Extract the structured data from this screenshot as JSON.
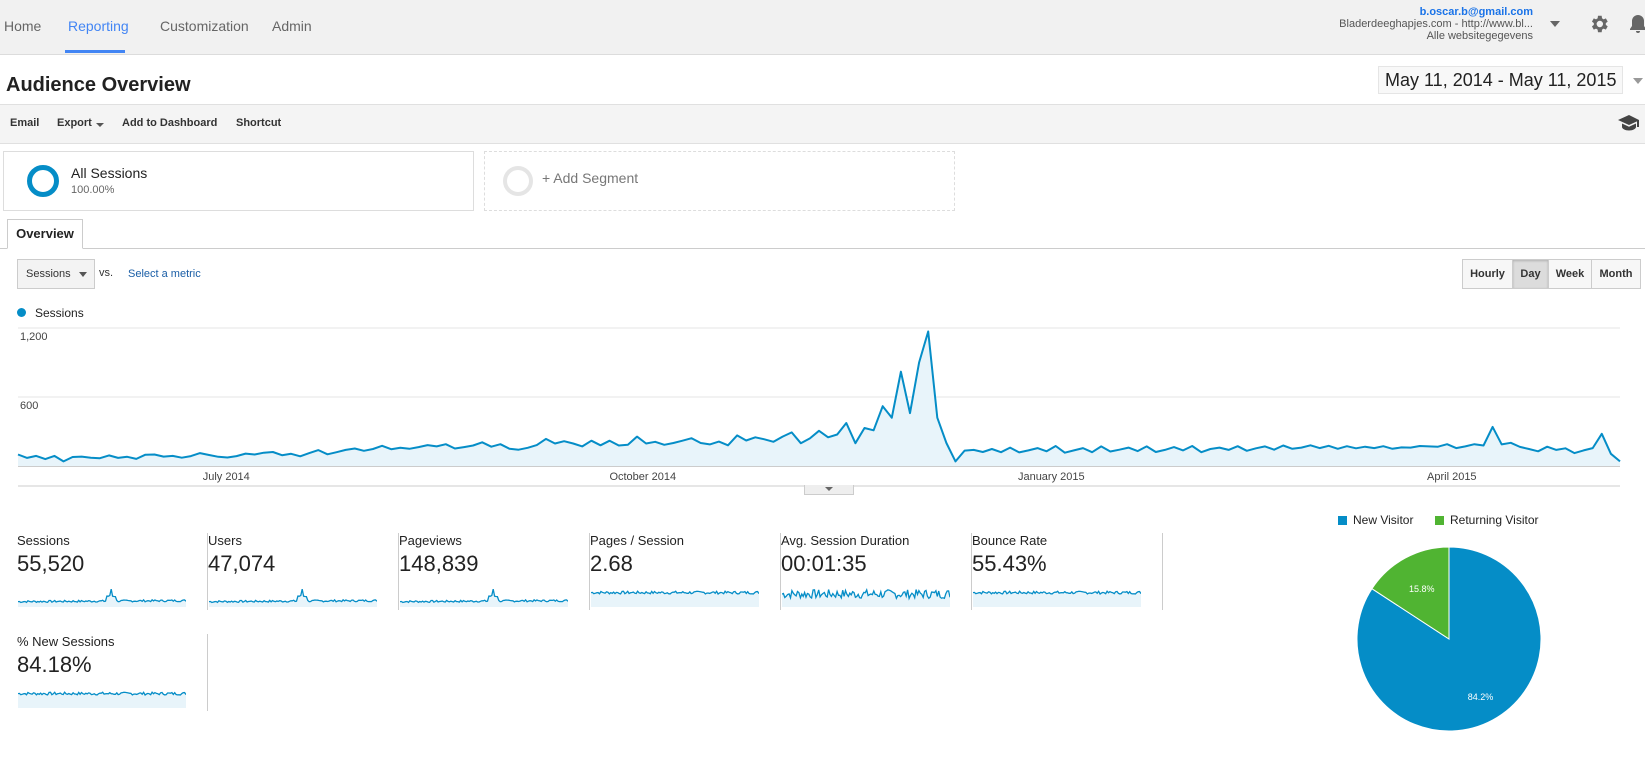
{
  "nav": {
    "items": [
      "Home",
      "Reporting",
      "Customization",
      "Admin"
    ],
    "active": "Reporting"
  },
  "account": {
    "email": "b.oscar.b@gmail.com",
    "property": "Bladerdeeghapjes.com - http://www.bl...",
    "view": "Alle websitegegevens"
  },
  "icons": {
    "settings": "gear-icon",
    "notifications": "bell-icon",
    "education": "graduation-cap-icon"
  },
  "page": {
    "title": "Audience Overview",
    "date_range": "May 11, 2014 - May 11, 2015"
  },
  "actions": {
    "email": "Email",
    "export": "Export",
    "dashboard": "Add to Dashboard",
    "shortcut": "Shortcut"
  },
  "segments": {
    "all": {
      "name": "All Sessions",
      "pct": "100.00%"
    },
    "add": "+ Add Segment"
  },
  "tabs": {
    "overview": "Overview"
  },
  "controls": {
    "metric": "Sessions",
    "vs": "vs.",
    "select_metric": "Select a metric",
    "granularity": [
      "Hourly",
      "Day",
      "Week",
      "Month"
    ],
    "active_granularity": "Day"
  },
  "colors": {
    "series": "#058dc7",
    "new_visitor": "#058dc7",
    "returning_visitor": "#50b432",
    "accent": "#4285f4"
  },
  "chart_data": [
    {
      "type": "area",
      "series": [
        {
          "name": "Sessions",
          "values": [
            100,
            70,
            88,
            60,
            88,
            40,
            78,
            82,
            72,
            68,
            92,
            70,
            80,
            62,
            98,
            100,
            82,
            88,
            72,
            86,
            112,
            96,
            80,
            74,
            86,
            108,
            100,
            116,
            122,
            94,
            106,
            84,
            112,
            138,
            102,
            120,
            140,
            152,
            132,
            148,
            176,
            146,
            158,
            150,
            164,
            182,
            170,
            190,
            152,
            164,
            178,
            206,
            168,
            190,
            150,
            142,
            158,
            182,
            236,
            196,
            216,
            196,
            170,
            220,
            180,
            220,
            178,
            184,
            256,
            196,
            210,
            184,
            200,
            220,
            242,
            200,
            188,
            212,
            180,
            266,
            222,
            250,
            232,
            210,
            256,
            292,
            198,
            240,
            306,
            250,
            274,
            374,
            198,
            330,
            310,
            520,
            420,
            820,
            460,
            900,
            1170,
            420,
            200,
            40,
            134,
            140,
            122,
            148,
            120,
            160,
            118,
            136,
            156,
            128,
            174,
            116,
            136,
            156,
            120,
            170,
            126,
            142,
            160,
            130,
            170,
            122,
            140,
            164,
            136,
            174,
            120,
            148,
            160,
            140,
            172,
            132,
            154,
            170,
            142,
            178,
            150,
            160,
            180,
            156,
            176,
            150,
            172,
            154,
            168,
            156,
            172,
            150,
            162,
            160,
            174,
            170,
            168,
            190,
            156,
            170,
            190,
            178,
            340,
            188,
            202,
            166,
            148,
            128,
            168,
            140,
            154,
            112,
            136,
            156,
            280,
            106,
            40
          ]
        }
      ],
      "x_labels": [
        "July 2014",
        "October 2014",
        "January 2015",
        "April 2015"
      ],
      "x_label_positions": [
        0.13,
        0.39,
        0.645,
        0.895
      ],
      "y_ticks": [
        "600",
        "1,200"
      ],
      "ylim": [
        0,
        1200
      ],
      "legend": "top-left",
      "grid": true
    },
    {
      "type": "pie",
      "slices": [
        {
          "name": "New Visitor",
          "value": 84.2,
          "label": "84.2%"
        },
        {
          "name": "Returning Visitor",
          "value": 15.8,
          "label": "15.8%"
        }
      ],
      "legend": "top"
    }
  ],
  "metrics": [
    {
      "label": "Sessions",
      "value": "55,520",
      "spark": "spike"
    },
    {
      "label": "Users",
      "value": "47,074",
      "spark": "spike"
    },
    {
      "label": "Pageviews",
      "value": "148,839",
      "spark": "spike"
    },
    {
      "label": "Pages / Session",
      "value": "2.68",
      "spark": "flat-high"
    },
    {
      "label": "Avg. Session Duration",
      "value": "00:01:35",
      "spark": "noisy"
    },
    {
      "label": "Bounce Rate",
      "value": "55.43%",
      "spark": "flat-high"
    },
    {
      "label": "% New Sessions",
      "value": "84.18%",
      "spark": "flat-high"
    }
  ]
}
